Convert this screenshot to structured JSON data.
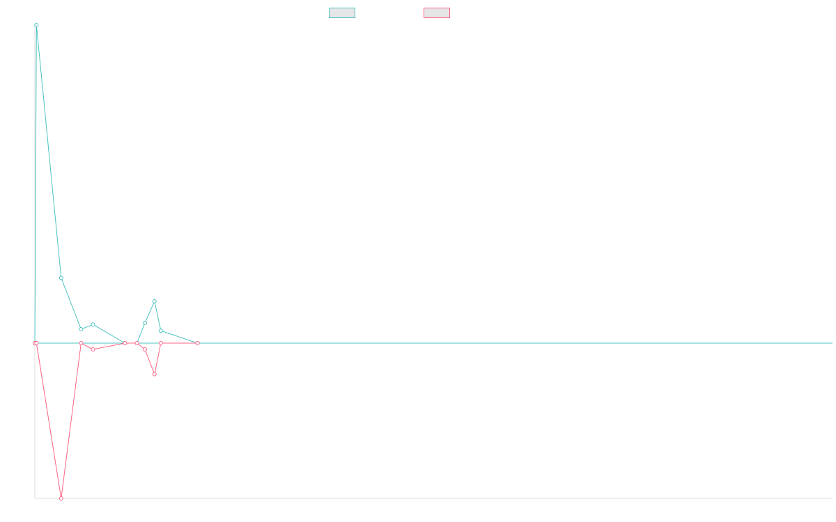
{
  "chart_data": {
    "type": "line",
    "title": "",
    "xlabel": "",
    "ylabel": "",
    "xlim": [
      0,
      1000
    ],
    "ylim": [
      -100,
      205
    ],
    "x": [
      0,
      2,
      33,
      58,
      73,
      113,
      128,
      138,
      150,
      158,
      204
    ],
    "grid": false,
    "legend_position": "top-center",
    "series": [
      {
        "color": "#4bc0c0",
        "values": [
          0,
          205,
          42,
          9,
          12,
          0,
          0,
          13,
          27,
          8,
          0
        ]
      },
      {
        "color": "#ff6384",
        "values": [
          0,
          0,
          -100,
          0,
          -4,
          0,
          0,
          -4,
          -20,
          0,
          0
        ]
      }
    ]
  }
}
